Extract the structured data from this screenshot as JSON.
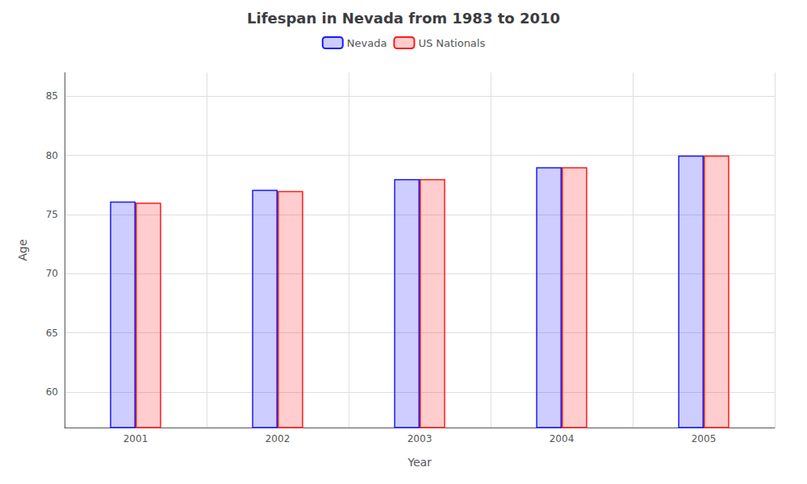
{
  "chart_data": {
    "type": "bar",
    "title": "Lifespan in Nevada from 1983 to 2010",
    "xlabel": "Year",
    "ylabel": "Age",
    "categories": [
      "2001",
      "2002",
      "2003",
      "2004",
      "2005"
    ],
    "series": [
      {
        "name": "Nevada",
        "color": "#1a1aff",
        "values": [
          76.1,
          77.1,
          78.0,
          79.0,
          80.0
        ]
      },
      {
        "name": "US Nationals",
        "color": "#ff1a1a",
        "values": [
          76.0,
          77.0,
          78.0,
          79.0,
          80.0
        ]
      }
    ],
    "ylim": [
      57,
      87
    ],
    "yticks": [
      60,
      65,
      70,
      75,
      80,
      85
    ],
    "grid": true,
    "legend": "top"
  }
}
